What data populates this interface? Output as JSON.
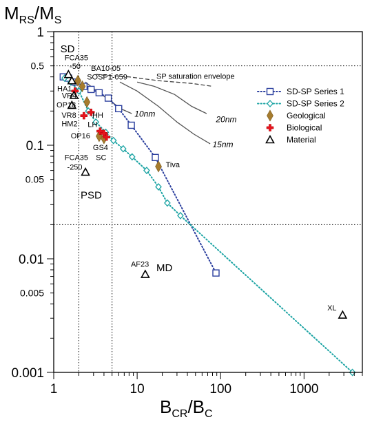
{
  "chart_data": {
    "type": "scatter",
    "x_scale": "log",
    "y_scale": "log",
    "xlim": [
      1,
      5000
    ],
    "ylim": [
      0.001,
      1
    ],
    "xlabel": "B",
    "xlabel_sub": "CR",
    "xlabel_mid": "/B",
    "xlabel_sub2": "C",
    "ylabel": "M",
    "ylabel_sub": "RS",
    "ylabel_mid": "/M",
    "ylabel_sub2": "S",
    "x_ticks": [
      {
        "value": 1,
        "label": "1"
      },
      {
        "value": 10,
        "label": "10"
      },
      {
        "value": 100,
        "label": "100"
      },
      {
        "value": 1000,
        "label": "1000"
      }
    ],
    "y_ticks": [
      {
        "value": 1,
        "label": "1",
        "major": true
      },
      {
        "value": 0.5,
        "label": "0.5",
        "major": false
      },
      {
        "value": 0.1,
        "label": "0.1",
        "major": true
      },
      {
        "value": 0.05,
        "label": "0.05",
        "major": false
      },
      {
        "value": 0.01,
        "label": "0.01",
        "major": true
      },
      {
        "value": 0.005,
        "label": "0.005",
        "major": false
      },
      {
        "value": 0.001,
        "label": "0.001",
        "major": true
      }
    ],
    "legend_position": "right",
    "series": [
      {
        "name": "SD-SP Series 1",
        "marker": "square",
        "color": "#2b3f9e",
        "line": "dotted",
        "points": [
          [
            1.3,
            0.4
          ],
          [
            1.5,
            0.39
          ],
          [
            1.8,
            0.36
          ],
          [
            2.3,
            0.33
          ],
          [
            2.8,
            0.31
          ],
          [
            3.5,
            0.29
          ],
          [
            4.5,
            0.26
          ],
          [
            6.0,
            0.21
          ],
          [
            8.5,
            0.15
          ],
          [
            16.5,
            0.078
          ],
          [
            88,
            0.0075
          ]
        ]
      },
      {
        "name": "SD-SP Series 2",
        "marker": "diamond-open",
        "color": "#1aa3a3",
        "line": "dotted",
        "points": [
          [
            1.35,
            0.39
          ],
          [
            1.6,
            0.36
          ],
          [
            2.0,
            0.3
          ],
          [
            2.6,
            0.2
          ],
          [
            3.2,
            0.16
          ],
          [
            4.2,
            0.13
          ],
          [
            5.2,
            0.11
          ],
          [
            6.8,
            0.093
          ],
          [
            8.7,
            0.079
          ],
          [
            13,
            0.06
          ],
          [
            18,
            0.043
          ],
          [
            23,
            0.031
          ],
          [
            33,
            0.024
          ],
          [
            3800,
            0.001
          ]
        ]
      },
      {
        "name": "Geological",
        "marker": "diamond-filled",
        "color": "#a67c2e",
        "points": [
          [
            1.95,
            0.37
          ],
          [
            2.2,
            0.33
          ],
          [
            2.5,
            0.24
          ],
          [
            3.5,
            0.12
          ],
          [
            4.0,
            0.115
          ],
          [
            18,
            0.065
          ]
        ]
      },
      {
        "name": "Biological",
        "marker": "cross",
        "color": "#e8141e",
        "points": [
          [
            1.8,
            0.3
          ],
          [
            2.3,
            0.182
          ],
          [
            2.8,
            0.195
          ],
          [
            3.6,
            0.133
          ],
          [
            4.0,
            0.127
          ],
          [
            4.3,
            0.118
          ]
        ]
      },
      {
        "name": "Material",
        "marker": "triangle",
        "color": "#000000",
        "points": [
          [
            1.5,
            0.42
          ],
          [
            1.65,
            0.37
          ],
          [
            1.75,
            0.275
          ],
          [
            1.65,
            0.225
          ],
          [
            2.4,
            0.058
          ],
          [
            12.5,
            0.0073
          ],
          [
            2900,
            0.0032
          ]
        ]
      }
    ],
    "reference_lines": {
      "x": [
        2,
        5
      ],
      "y": [
        0.5,
        0.02
      ]
    },
    "annotations": [
      {
        "text": "SD",
        "x": 1.2,
        "y": 0.66,
        "size": "big"
      },
      {
        "text": "FCA35",
        "x": 1.35,
        "y": 0.56
      },
      {
        "text": "-50",
        "x": 1.55,
        "y": 0.47
      },
      {
        "text": "BA10-05",
        "x": 2.8,
        "y": 0.45
      },
      {
        "text": "SOSP1-059",
        "x": 2.5,
        "y": 0.38
      },
      {
        "text": "SP saturation envelope",
        "x": 17,
        "y": 0.385
      },
      {
        "text": "HA1",
        "x": 1.1,
        "y": 0.3
      },
      {
        "text": "VR4",
        "x": 1.25,
        "y": 0.26
      },
      {
        "text": "OP18",
        "x": 1.08,
        "y": 0.215
      },
      {
        "text": "VR8",
        "x": 1.24,
        "y": 0.175
      },
      {
        "text": "HM2",
        "x": 1.24,
        "y": 0.147
      },
      {
        "text": "LH",
        "x": 2.55,
        "y": 0.145
      },
      {
        "text": "HH",
        "x": 2.9,
        "y": 0.175
      },
      {
        "text": "OP16",
        "x": 1.6,
        "y": 0.115
      },
      {
        "text": "GS4",
        "x": 2.95,
        "y": 0.091
      },
      {
        "text": "SC",
        "x": 3.2,
        "y": 0.074
      },
      {
        "text": "FCA35",
        "x": 1.35,
        "y": 0.074
      },
      {
        "text": "-250",
        "x": 1.45,
        "y": 0.061
      },
      {
        "text": "PSD",
        "x": 2.1,
        "y": 0.034,
        "size": "big"
      },
      {
        "text": "Tiva",
        "x": 22,
        "y": 0.064
      },
      {
        "text": "10nm",
        "x": 9.3,
        "y": 0.178,
        "style": "italic"
      },
      {
        "text": "20nm",
        "x": 88,
        "y": 0.16,
        "style": "italic"
      },
      {
        "text": "15nm",
        "x": 80,
        "y": 0.096,
        "style": "italic"
      },
      {
        "text": "AF23",
        "x": 8.4,
        "y": 0.0085
      },
      {
        "text": "MD",
        "x": 17,
        "y": 0.0078,
        "size": "big"
      },
      {
        "text": "XL",
        "x": 1900,
        "y": 0.0035
      }
    ],
    "curves": [
      {
        "label": "10nm",
        "style": "solid",
        "points": [
          [
            2.4,
            0.36
          ],
          [
            3.3,
            0.3
          ],
          [
            4.6,
            0.25
          ],
          [
            6.5,
            0.208
          ],
          [
            8.6,
            0.19
          ]
        ]
      },
      {
        "label": "15nm",
        "style": "solid",
        "points": [
          [
            6.2,
            0.36
          ],
          [
            10,
            0.3
          ],
          [
            18,
            0.22
          ],
          [
            30,
            0.16
          ],
          [
            48,
            0.125
          ],
          [
            75,
            0.103
          ]
        ]
      },
      {
        "label": "20nm",
        "style": "solid",
        "points": [
          [
            10,
            0.36
          ],
          [
            16,
            0.33
          ],
          [
            28,
            0.28
          ],
          [
            45,
            0.22
          ],
          [
            68,
            0.19
          ]
        ]
      },
      {
        "label": "SP saturation envelope",
        "style": "dashed",
        "points": [
          [
            3.2,
            0.42
          ],
          [
            8,
            0.4
          ],
          [
            18,
            0.37
          ],
          [
            45,
            0.35
          ],
          [
            80,
            0.33
          ]
        ]
      }
    ]
  }
}
